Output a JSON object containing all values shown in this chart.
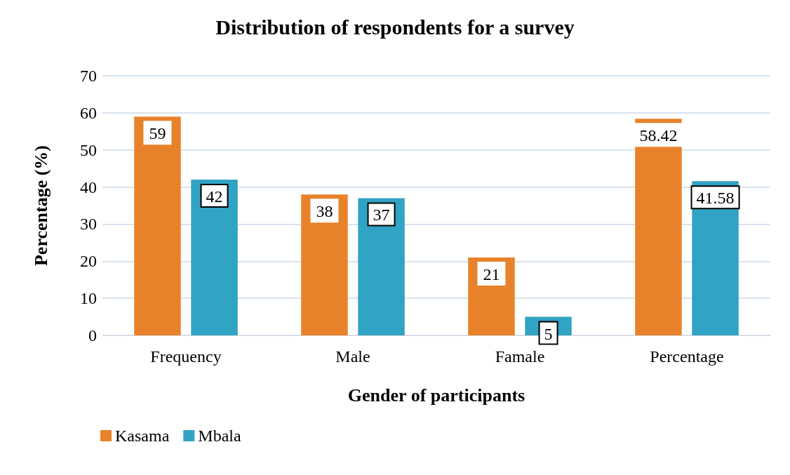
{
  "chart_data": {
    "type": "bar",
    "title": "Distribution of respondents for a survey",
    "xlabel": "Gender of participants",
    "ylabel": "Percentage (%)",
    "categories": [
      "Frequency",
      "Male",
      "Famale",
      "Percentage"
    ],
    "series": [
      {
        "name": "Kasama",
        "color": "#e8822a",
        "values": [
          59,
          38,
          21,
          58.42
        ]
      },
      {
        "name": "Mbala",
        "color": "#31a3c4",
        "values": [
          42,
          37,
          5,
          41.58
        ]
      }
    ],
    "ylim": [
      0,
      70
    ],
    "yticks": [
      0,
      10,
      20,
      30,
      40,
      50,
      60,
      70
    ],
    "grid": "y",
    "legend": "bottom left",
    "data_labels": true
  }
}
